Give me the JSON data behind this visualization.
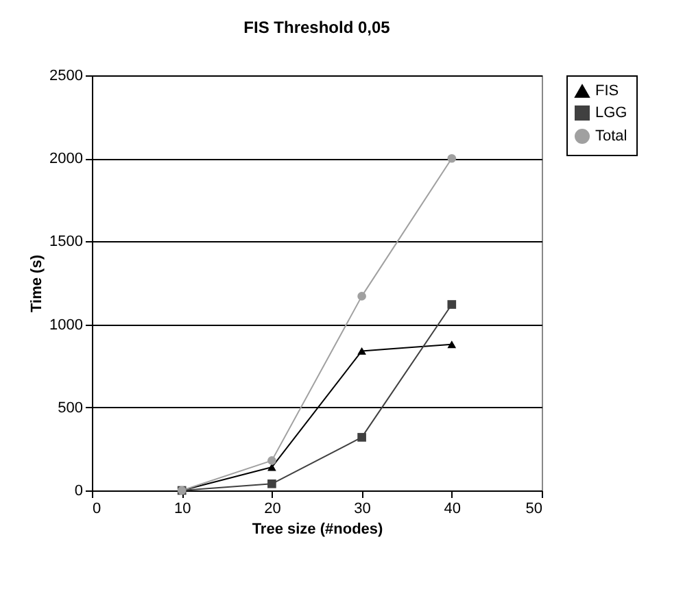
{
  "chart_data": {
    "type": "line",
    "title": "FIS Threshold 0,05",
    "xlabel": "Tree size (#nodes)",
    "ylabel": "Time (s)",
    "x": [
      10,
      20,
      30,
      40
    ],
    "series": [
      {
        "name": "FIS",
        "color": "#000000",
        "marker": "triangle",
        "values": [
          0,
          140,
          840,
          880
        ]
      },
      {
        "name": "LGG",
        "color": "#404040",
        "marker": "square",
        "values": [
          0,
          40,
          320,
          1120
        ]
      },
      {
        "name": "Total",
        "color": "#a0a0a0",
        "marker": "circle",
        "values": [
          0,
          180,
          1170,
          2000
        ]
      }
    ],
    "xlim": [
      0,
      50
    ],
    "xticks": [
      0,
      10,
      20,
      30,
      40,
      50
    ],
    "ylim": [
      0,
      2500
    ],
    "yticks": [
      0,
      500,
      1000,
      1500,
      2000,
      2500
    ],
    "grid": "y",
    "legend": "right",
    "line_style": "solid"
  }
}
